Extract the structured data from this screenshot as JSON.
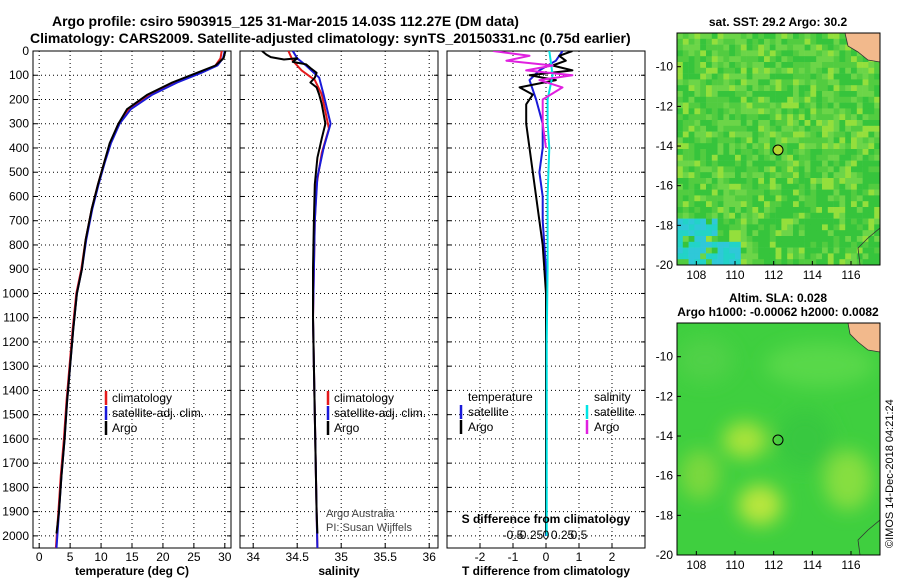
{
  "title": {
    "line1": "Argo profile: csiro 5903915_125 31-Mar-2015 14.03S 112.27E (DM data)",
    "line2": "Climatology: CARS2009. Satellite-adjusted climatology: synTS_20150331.nc (0.75d earlier)"
  },
  "colors": {
    "climatology": "#e41a1c",
    "satellite": "#1a1ad8",
    "argo": "#000000",
    "sal_satellite": "#00e5e5",
    "sal_argo": "#e020e0"
  },
  "legends": {
    "temp": [
      "climatology",
      "satellite-adj. clim.",
      "Argo"
    ],
    "sal": [
      "climatology",
      "satellite-adj. clim.",
      "Argo"
    ],
    "diff_left_head": "temperature",
    "diff_right_head": "salinity",
    "diff_left": [
      "satellite",
      "Argo"
    ],
    "diff_right": [
      "satellite",
      "Argo"
    ]
  },
  "credits": {
    "line1": "Argo Australia",
    "line2": "PI: Susan Wijffels"
  },
  "map_sst": {
    "title": "sat. SST: 29.2 Argo: 30.2"
  },
  "map_sla": {
    "title1": "Altim. SLA: 0.028",
    "title2": "Argo h1000: -0.00062 h2000: 0.0082"
  },
  "footer": "©IMOS 14-Dec-2018 04:21:24",
  "chart_data": [
    {
      "type": "line",
      "id": "temperature",
      "xlabel": "temperature (deg C)",
      "xlim": [
        -1,
        31
      ],
      "ylim": [
        0,
        2050
      ],
      "y_reversed": true,
      "xticks": [
        0,
        5,
        10,
        15,
        20,
        25,
        30
      ],
      "yticks": [
        0,
        100,
        200,
        300,
        400,
        500,
        600,
        700,
        800,
        900,
        1000,
        1100,
        1200,
        1300,
        1400,
        1500,
        1600,
        1700,
        1800,
        1900,
        2000
      ],
      "ytick_labels": [
        "0",
        "100",
        "200",
        "300",
        "400",
        "500",
        "600",
        "700",
        "800",
        "900",
        "1000",
        "1100",
        "1200",
        "1300",
        "1400",
        "1500",
        "1600",
        "1700",
        "1800",
        "1900",
        "2000"
      ],
      "series": [
        {
          "name": "climatology",
          "points": [
            [
              29.5,
              0
            ],
            [
              29.3,
              30
            ],
            [
              28.5,
              60
            ],
            [
              26,
              90
            ],
            [
              22,
              130
            ],
            [
              18,
              180
            ],
            [
              14.5,
              240
            ],
            [
              12.8,
              300
            ],
            [
              11.5,
              380
            ],
            [
              10.5,
              460
            ],
            [
              9.5,
              550
            ],
            [
              8.5,
              650
            ],
            [
              7.5,
              780
            ],
            [
              6.8,
              900
            ],
            [
              6,
              1000
            ],
            [
              5.4,
              1150
            ],
            [
              4.9,
              1300
            ],
            [
              4.4,
              1450
            ],
            [
              4,
              1600
            ],
            [
              3.5,
              1750
            ],
            [
              3.1,
              1900
            ],
            [
              2.7,
              2050
            ]
          ]
        },
        {
          "name": "satellite-adj. clim.",
          "points": [
            [
              30,
              0
            ],
            [
              29.7,
              30
            ],
            [
              28.8,
              60
            ],
            [
              26.2,
              90
            ],
            [
              22.3,
              130
            ],
            [
              18.3,
              180
            ],
            [
              14.8,
              240
            ],
            [
              13,
              300
            ],
            [
              11.6,
              380
            ],
            [
              10.6,
              460
            ],
            [
              9.6,
              550
            ],
            [
              8.6,
              650
            ],
            [
              7.6,
              780
            ],
            [
              6.9,
              900
            ],
            [
              6.1,
              1000
            ],
            [
              5.5,
              1150
            ],
            [
              5,
              1300
            ],
            [
              4.5,
              1450
            ],
            [
              4.1,
              1600
            ],
            [
              3.6,
              1750
            ],
            [
              3.2,
              1900
            ],
            [
              2.8,
              2050
            ]
          ]
        },
        {
          "name": "Argo",
          "points": [
            [
              30.1,
              0
            ],
            [
              29.8,
              30
            ],
            [
              28.5,
              60
            ],
            [
              25.5,
              90
            ],
            [
              21.5,
              130
            ],
            [
              17.5,
              180
            ],
            [
              14.2,
              240
            ],
            [
              12.8,
              300
            ],
            [
              11.4,
              380
            ],
            [
              10.5,
              460
            ],
            [
              9.5,
              550
            ],
            [
              8.5,
              650
            ],
            [
              7.5,
              780
            ],
            [
              6.9,
              900
            ],
            [
              6.1,
              1000
            ],
            [
              5.5,
              1150
            ],
            [
              5,
              1300
            ],
            [
              4.5,
              1450
            ],
            [
              4.1,
              1600
            ],
            [
              3.6,
              1750
            ],
            [
              3.2,
              1900
            ],
            [
              2.8,
              1990
            ]
          ]
        }
      ]
    },
    {
      "type": "line",
      "id": "salinity",
      "xlabel": "salinity",
      "xlim": [
        33.85,
        36.1
      ],
      "ylim": [
        0,
        2050
      ],
      "y_reversed": true,
      "xticks": [
        34,
        34.5,
        35,
        35.5,
        36
      ],
      "series": [
        {
          "name": "climatology",
          "points": [
            [
              34.4,
              0
            ],
            [
              34.45,
              40
            ],
            [
              34.55,
              80
            ],
            [
              34.7,
              120
            ],
            [
              34.78,
              180
            ],
            [
              34.82,
              250
            ],
            [
              34.86,
              320
            ],
            [
              34.78,
              420
            ],
            [
              34.72,
              550
            ],
            [
              34.7,
              700
            ],
            [
              34.69,
              900
            ],
            [
              34.68,
              1100
            ],
            [
              34.69,
              1300
            ],
            [
              34.7,
              1500
            ],
            [
              34.71,
              1700
            ],
            [
              34.72,
              1900
            ],
            [
              34.73,
              2050
            ]
          ]
        },
        {
          "name": "satellite-adj. clim.",
          "points": [
            [
              34.45,
              0
            ],
            [
              34.5,
              30
            ],
            [
              34.6,
              60
            ],
            [
              34.75,
              110
            ],
            [
              34.8,
              180
            ],
            [
              34.84,
              240
            ],
            [
              34.88,
              300
            ],
            [
              34.8,
              400
            ],
            [
              34.73,
              520
            ],
            [
              34.7,
              700
            ],
            [
              34.69,
              900
            ],
            [
              34.68,
              1100
            ],
            [
              34.69,
              1300
            ],
            [
              34.7,
              1500
            ],
            [
              34.71,
              1700
            ],
            [
              34.72,
              1900
            ],
            [
              34.73,
              2050
            ]
          ]
        },
        {
          "name": "Argo",
          "points": [
            [
              34.1,
              0
            ],
            [
              34.15,
              15
            ],
            [
              34.2,
              25
            ],
            [
              34.35,
              35
            ],
            [
              34.5,
              30
            ],
            [
              34.45,
              45
            ],
            [
              34.6,
              55
            ],
            [
              34.65,
              70
            ],
            [
              34.72,
              90
            ],
            [
              34.7,
              110
            ],
            [
              34.65,
              130
            ],
            [
              34.72,
              150
            ],
            [
              34.75,
              180
            ],
            [
              34.78,
              220
            ],
            [
              34.8,
              260
            ],
            [
              34.82,
              300
            ],
            [
              34.78,
              360
            ],
            [
              34.73,
              440
            ],
            [
              34.7,
              550
            ],
            [
              34.69,
              700
            ],
            [
              34.68,
              900
            ],
            [
              34.68,
              1100
            ],
            [
              34.69,
              1300
            ],
            [
              34.7,
              1500
            ],
            [
              34.71,
              1700
            ],
            [
              34.72,
              1900
            ],
            [
              34.73,
              1990
            ]
          ]
        }
      ]
    },
    {
      "type": "line",
      "id": "difference",
      "xlabel": "T difference from climatology",
      "xlim": [
        -3,
        3
      ],
      "ylim": [
        0,
        2050
      ],
      "y_reversed": true,
      "xticks": [
        -2,
        -1,
        0,
        1,
        2
      ],
      "secondary_axis_label": "S difference from climatology",
      "secondary_xticks": [
        "-0.5",
        "-0.25",
        "0",
        "0.25",
        "0.5"
      ],
      "series": [
        {
          "name": "temperature satellite",
          "points": [
            [
              0.5,
              0
            ],
            [
              0.3,
              40
            ],
            [
              -0.2,
              80
            ],
            [
              -0.5,
              120
            ],
            [
              -0.3,
              200
            ],
            [
              -0.1,
              300
            ],
            [
              -0.1,
              400
            ],
            [
              -0.2,
              500
            ],
            [
              -0.1,
              600
            ],
            [
              -0.1,
              700
            ],
            [
              0,
              900
            ],
            [
              0,
              1200
            ],
            [
              0,
              1500
            ],
            [
              0,
              1800
            ],
            [
              0,
              2000
            ]
          ]
        },
        {
          "name": "temperature Argo",
          "points": [
            [
              0.8,
              0
            ],
            [
              0.4,
              20
            ],
            [
              0.6,
              40
            ],
            [
              0.2,
              60
            ],
            [
              0.8,
              80
            ],
            [
              -0.5,
              100
            ],
            [
              0.3,
              120
            ],
            [
              -0.8,
              150
            ],
            [
              -0.4,
              180
            ],
            [
              -0.6,
              220
            ],
            [
              -0.6,
              300
            ],
            [
              -0.5,
              400
            ],
            [
              -0.4,
              500
            ],
            [
              -0.3,
              600
            ],
            [
              -0.2,
              700
            ],
            [
              -0.1,
              800
            ],
            [
              0,
              1000
            ],
            [
              0,
              1300
            ],
            [
              0,
              1600
            ],
            [
              0,
              1900
            ],
            [
              0,
              1990
            ]
          ]
        },
        {
          "name": "salinity satellite",
          "points": [
            [
              0.1,
              0
            ],
            [
              0.15,
              50
            ],
            [
              0.2,
              100
            ],
            [
              0.05,
              200
            ],
            [
              0.05,
              300
            ],
            [
              0.1,
              400
            ],
            [
              0.05,
              600
            ],
            [
              0.05,
              900
            ],
            [
              0.02,
              1200
            ],
            [
              0.02,
              1500
            ],
            [
              0.02,
              1800
            ],
            [
              0.02,
              2000
            ]
          ]
        },
        {
          "name": "salinity Argo",
          "points": [
            [
              -1.6,
              0
            ],
            [
              -0.5,
              20
            ],
            [
              -1.2,
              40
            ],
            [
              0.2,
              60
            ],
            [
              -0.6,
              80
            ],
            [
              0.8,
              100
            ],
            [
              -0.2,
              120
            ],
            [
              0.5,
              150
            ],
            [
              -0.1,
              200
            ],
            [
              -0.1,
              300
            ],
            [
              0,
              400
            ]
          ]
        }
      ]
    },
    {
      "type": "heatmap",
      "id": "map-sst",
      "xlim": [
        107,
        117.5
      ],
      "ylim": [
        -20,
        -8.3
      ],
      "xticks": [
        108,
        110,
        112,
        114,
        116
      ],
      "yticks": [
        -10,
        -12,
        -14,
        -16,
        -18,
        -20
      ],
      "marker": [
        112.27,
        -14.03
      ]
    },
    {
      "type": "heatmap",
      "id": "map-sla",
      "xlim": [
        107,
        117.5
      ],
      "ylim": [
        -20,
        -8.3
      ],
      "xticks": [
        108,
        110,
        112,
        114,
        116
      ],
      "yticks": [
        -10,
        -12,
        -14,
        -16,
        -18,
        -20
      ],
      "marker": [
        112.27,
        -14.03
      ]
    }
  ]
}
